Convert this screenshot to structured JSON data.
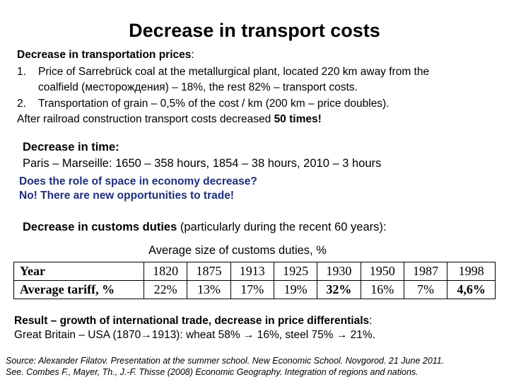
{
  "title": "Decrease in transport costs",
  "prices": {
    "heading": "Decrease in transportation prices",
    "heading_suffix": ":",
    "item1_number": "1.",
    "item1_line1": "Price of Sarrebrück coal at the metallurgical plant, located 220 km away from the",
    "item1_line2": "coalfield (месторождения) – 18%, the rest 82% – transport costs.",
    "item2_number": "2.",
    "item2_text": "Transportation of grain – 0,5% of the cost / km (200 km – price doubles).",
    "railroad_text": "After railroad construction transport costs decreased ",
    "railroad_emph": "50 times!"
  },
  "time": {
    "heading": "Decrease in time:",
    "line": "Paris – Marseille:  1650  – 358 hours,   1854 – 38 hours,   2010 – 3 hours",
    "question": "Does the role of space in economy decrease?",
    "answer": "No! There are new opportunities to trade!"
  },
  "customs": {
    "heading_bold": "Decrease in customs duties",
    "heading_rest": " (particularly during the recent 60 years):",
    "table_caption": "Average size of customs duties, %",
    "row_year_label": "Year",
    "row_tariff_label": "Average tariff, %",
    "years": [
      "1820",
      "1875",
      "1913",
      "1925",
      "1930",
      "1950",
      "1987",
      "1998"
    ],
    "tariffs": [
      "22%",
      "13%",
      "17%",
      "19%",
      "32%",
      "16%",
      "7%",
      "4,6%"
    ]
  },
  "result": {
    "line1_bold": "Result – growth of international trade, decrease in price differentials",
    "line1_end": ":",
    "line2": "Great Britain – USA (1870→1913): wheat 58% → 16%, steel 75% → 21%."
  },
  "source": {
    "line1": "Source: Alexander Filatov. Presentation at the summer school. New Economic School. Novgorod. 21 June 2011.",
    "line2": "See. Combes F., Mayer, Th., J.-F. Thisse (2008) Economic Geography. Integration of regions and nations."
  }
}
